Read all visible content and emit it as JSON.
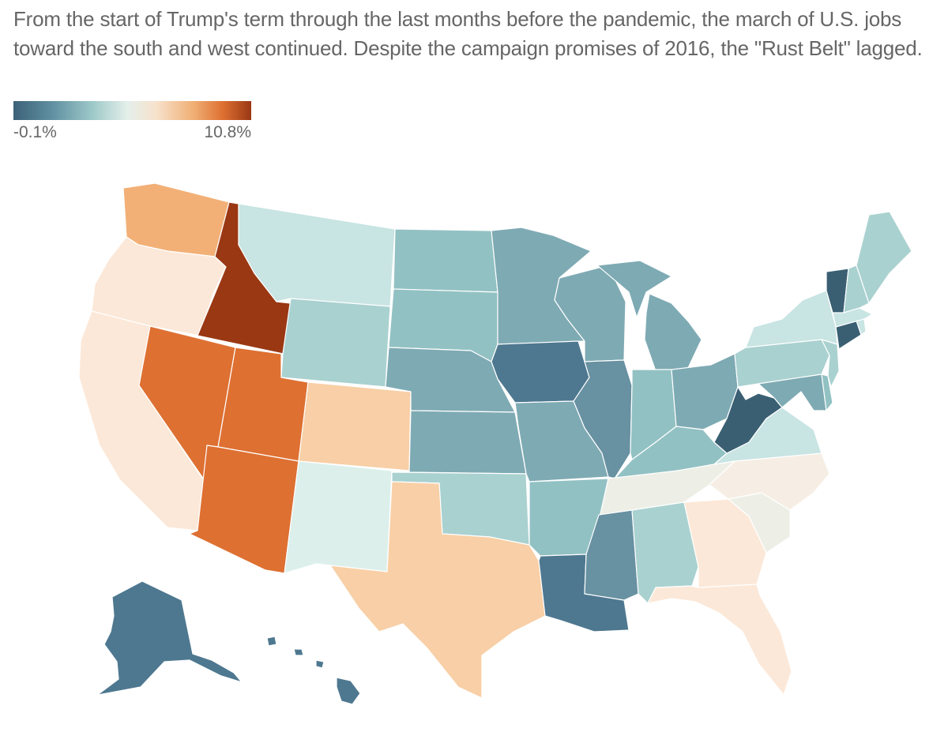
{
  "subtitle": "From the start of Trump's term through the last months before the pandemic, the march of U.S. jobs toward the south and west continued. Despite the campaign promises of 2016, the \"Rust Belt\" lagged.",
  "legend": {
    "min_label": "-0.1%",
    "max_label": "10.8%",
    "colors": [
      "#3c6178",
      "#5f8fa1",
      "#9cc8c8",
      "#e4efea",
      "#f7e2cc",
      "#f0ae73",
      "#de7032",
      "#9a3814"
    ]
  },
  "colors": {
    "c1": "#9a3814",
    "c2": "#de7032",
    "c3": "#f2b077",
    "c4": "#f8cfa6",
    "c5": "#fce8d8",
    "c6": "#f6eee4",
    "c7": "#edefe6",
    "c8": "#dcefeb",
    "c9": "#c8e4e3",
    "c10": "#a9d1d0",
    "c11": "#92c1c3",
    "c12": "#7eaab3",
    "c13": "#6891a2",
    "c14": "#4e7890",
    "c15": "#3a5f73"
  }
}
